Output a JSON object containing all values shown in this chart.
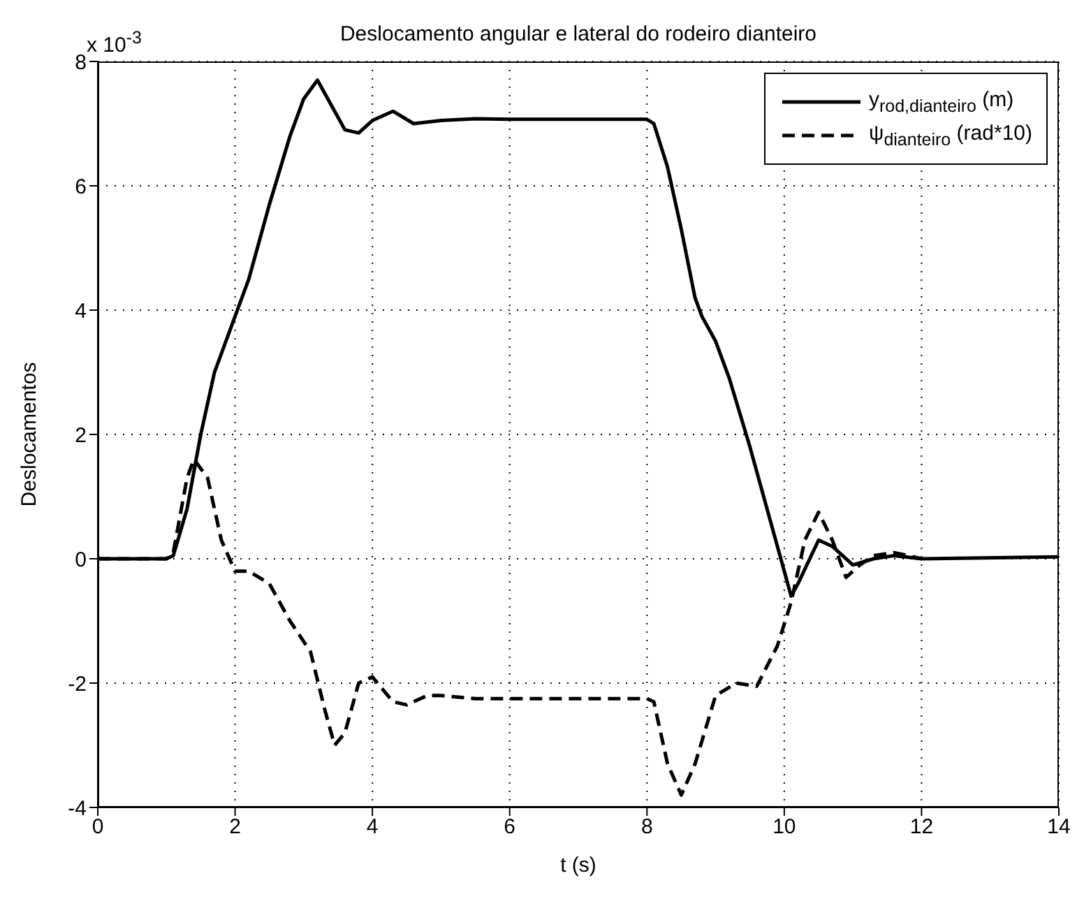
{
  "chart_data": {
    "type": "line",
    "title": "Deslocamento angular e lateral do rodeiro dianteiro",
    "xlabel": "t (s)",
    "ylabel": "Deslocamentos",
    "annotations": [
      "x 10$^{-3}$"
    ],
    "xlim": [
      0,
      14
    ],
    "xticks": [
      0,
      2,
      4,
      6,
      8,
      10,
      12,
      14
    ],
    "ylim": [
      -4,
      8
    ],
    "yticks": [
      -4,
      -2,
      0,
      2,
      4,
      6,
      8
    ],
    "grid": true,
    "legend": "top right",
    "marker": "none",
    "series": [
      {
        "name": "y$_{rod,dianteiro}$ (m)",
        "color": "#000000",
        "line_style": "solid",
        "x": [
          0,
          1,
          1.1,
          1.3,
          1.5,
          1.7,
          2,
          2.2,
          2.5,
          2.8,
          3.0,
          3.2,
          3.4,
          3.6,
          3.8,
          4.0,
          4.3,
          4.6,
          5,
          5.5,
          6,
          7,
          8,
          8.1,
          8.3,
          8.5,
          8.7,
          8.8,
          9,
          9.2,
          9.5,
          9.8,
          10.1,
          10.2,
          10.5,
          10.7,
          11,
          11.3,
          11.6,
          12,
          14
        ],
        "values": [
          0,
          0,
          0.05,
          0.8,
          2.0,
          3.0,
          3.9,
          4.5,
          5.7,
          6.8,
          7.4,
          7.7,
          7.3,
          6.9,
          6.85,
          7.05,
          7.2,
          7.0,
          7.05,
          7.08,
          7.07,
          7.07,
          7.07,
          7.0,
          6.3,
          5.3,
          4.2,
          3.9,
          3.5,
          2.9,
          1.8,
          0.6,
          -0.6,
          -0.4,
          0.3,
          0.2,
          -0.1,
          0,
          0.05,
          0,
          0.03
        ]
      },
      {
        "name": "ψ$_{dianteiro}$ (rad*10)",
        "color": "#000000",
        "line_style": "dashed",
        "x": [
          0,
          1,
          1.1,
          1.3,
          1.4,
          1.6,
          1.8,
          2,
          2.2,
          2.5,
          2.8,
          3.1,
          3.3,
          3.45,
          3.6,
          3.8,
          4.0,
          4.3,
          4.5,
          4.8,
          5,
          5.5,
          6,
          8,
          8.1,
          8.3,
          8.5,
          8.7,
          9,
          9.3,
          9.6,
          9.9,
          10.1,
          10.3,
          10.5,
          10.7,
          10.9,
          11.1,
          11.3,
          11.6,
          11.8,
          12
        ],
        "values": [
          0,
          0,
          0.1,
          1.3,
          1.6,
          1.3,
          0.3,
          -0.2,
          -0.2,
          -0.4,
          -1.0,
          -1.5,
          -2.4,
          -3.0,
          -2.8,
          -2.0,
          -1.9,
          -2.3,
          -2.35,
          -2.2,
          -2.2,
          -2.25,
          -2.25,
          -2.25,
          -2.3,
          -3.3,
          -3.8,
          -3.3,
          -2.2,
          -2.0,
          -2.05,
          -1.4,
          -0.7,
          0.3,
          0.75,
          0.3,
          -0.3,
          -0.1,
          0.05,
          0.1,
          0.05,
          0
        ]
      }
    ]
  }
}
